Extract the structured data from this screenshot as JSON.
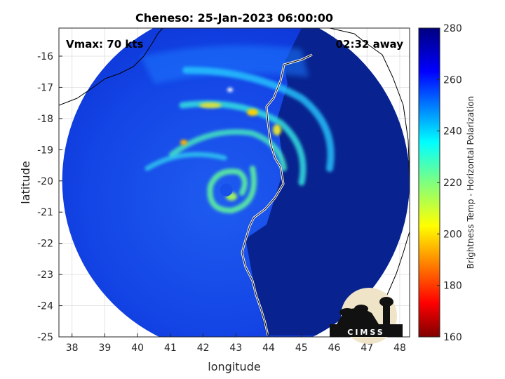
{
  "chart_data": {
    "type": "heatmap",
    "title": "Cheneso: 25-Jan-2023 06:00:00",
    "xlabel": "longitude",
    "ylabel": "latitude",
    "xlim": [
      37.6,
      48.3
    ],
    "ylim": [
      -25,
      -15.1
    ],
    "xticks": [
      38,
      39,
      40,
      41,
      42,
      43,
      44,
      45,
      46,
      47,
      48
    ],
    "yticks": [
      -16,
      -17,
      -18,
      -19,
      -20,
      -21,
      -22,
      -23,
      -24,
      -25
    ],
    "grid": true,
    "annotations": {
      "vmax": "Vmax: 70 kts",
      "away": "02:32 away"
    },
    "colorbar": {
      "label": "Brightness Temp - Horizontal Polarization",
      "min": 160,
      "max": 280,
      "ticks": [
        160,
        180,
        200,
        220,
        240,
        260,
        280
      ],
      "colormap": "jet"
    },
    "storm_center": {
      "lon": 42.6,
      "lat": -20.2
    },
    "swath": {
      "center_lon": 43.0,
      "center_lat": -20.0,
      "radius_deg": 5.3
    },
    "logo": "CIMSS"
  }
}
